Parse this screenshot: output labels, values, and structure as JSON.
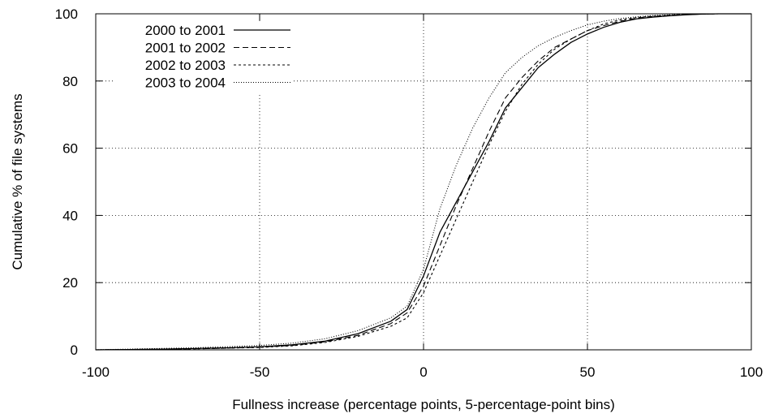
{
  "chart_data": {
    "type": "line",
    "title": "",
    "xlabel": "Fullness increase (percentage points, 5-percentage-point bins)",
    "ylabel": "Cumulative % of file systems",
    "xlim": [
      -100,
      100
    ],
    "ylim": [
      0,
      100
    ],
    "xticks": [
      -100,
      -50,
      0,
      50,
      100
    ],
    "yticks": [
      0,
      20,
      40,
      60,
      80,
      100
    ],
    "grid": true,
    "legend_position": "top-left",
    "series": [
      {
        "name": "2000 to 2001",
        "style": "solid",
        "x": [
          -100,
          -90,
          -80,
          -70,
          -60,
          -50,
          -40,
          -30,
          -20,
          -10,
          -5,
          0,
          5,
          10,
          15,
          20,
          25,
          30,
          35,
          40,
          45,
          50,
          55,
          60,
          65,
          70,
          75,
          80,
          85,
          90,
          95,
          100
        ],
        "y": [
          0,
          0.1,
          0.2,
          0.4,
          0.6,
          0.9,
          1.5,
          2.6,
          4.8,
          8.5,
          12,
          22,
          35,
          44,
          53,
          62,
          72,
          78,
          84,
          88,
          91.5,
          94,
          96,
          97.5,
          98.5,
          99,
          99.4,
          99.7,
          99.9,
          100,
          100,
          100
        ]
      },
      {
        "name": "2001 to 2002",
        "style": "dashed",
        "x": [
          -100,
          -90,
          -80,
          -70,
          -60,
          -50,
          -40,
          -30,
          -20,
          -10,
          -5,
          0,
          5,
          10,
          15,
          20,
          25,
          30,
          35,
          40,
          45,
          50,
          55,
          60,
          65,
          70,
          75,
          80,
          85,
          90,
          95,
          100
        ],
        "y": [
          0,
          0.1,
          0.2,
          0.3,
          0.5,
          0.8,
          1.3,
          2.4,
          4.3,
          7.8,
          11,
          19,
          31,
          43,
          54,
          65,
          75,
          81,
          86,
          90,
          92.5,
          95,
          96.5,
          97.8,
          98.7,
          99.2,
          99.5,
          99.8,
          99.9,
          100,
          100,
          100
        ]
      },
      {
        "name": "2002 to 2003",
        "style": "short-dashed",
        "x": [
          -100,
          -90,
          -80,
          -70,
          -60,
          -50,
          -40,
          -30,
          -20,
          -10,
          -5,
          0,
          5,
          10,
          15,
          20,
          25,
          30,
          35,
          40,
          45,
          50,
          55,
          60,
          65,
          70,
          75,
          80,
          85,
          90,
          95,
          100
        ],
        "y": [
          0,
          0.1,
          0.2,
          0.3,
          0.5,
          0.7,
          1.2,
          2.2,
          4.0,
          7.0,
          9.5,
          17,
          28,
          39,
          50,
          61,
          71,
          79,
          85,
          89.5,
          92.5,
          95,
          97,
          98.2,
          98.9,
          99.3,
          99.6,
          99.8,
          99.9,
          100,
          100,
          100
        ]
      },
      {
        "name": "2003 to 2004",
        "style": "dotted",
        "x": [
          -100,
          -90,
          -80,
          -70,
          -60,
          -50,
          -40,
          -30,
          -20,
          -10,
          -5,
          0,
          5,
          10,
          15,
          20,
          25,
          30,
          35,
          40,
          45,
          50,
          55,
          60,
          65,
          70,
          75,
          80,
          85,
          90,
          95,
          100
        ],
        "y": [
          0,
          0.2,
          0.4,
          0.6,
          0.9,
          1.3,
          2.0,
          3.3,
          5.7,
          9.5,
          13,
          24,
          42,
          55,
          66,
          75,
          82.5,
          87,
          90.5,
          93,
          95,
          96.7,
          97.8,
          98.6,
          99.1,
          99.5,
          99.7,
          99.9,
          100,
          100,
          100,
          100
        ]
      }
    ]
  }
}
